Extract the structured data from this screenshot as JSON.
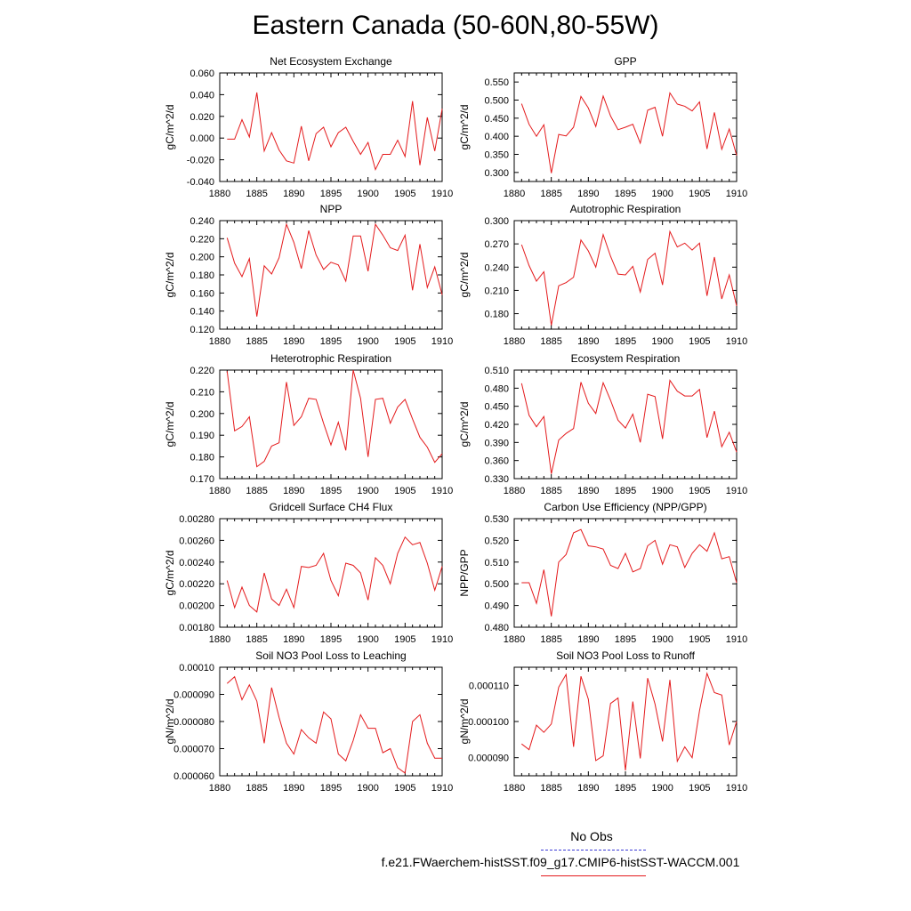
{
  "title": "Eastern Canada (50-60N,80-55W)",
  "legend": {
    "obs_label": "No Obs",
    "model_label": "f.e21.FWaerchem-histSST.f09_g17.CMIP6-histSST-WACCM.001",
    "obs_color": "#3b3bd6",
    "model_color": "#e41a1c"
  },
  "chart_data": [
    {
      "type": "line",
      "title": "Net Ecosystem Exchange",
      "ylabel": "gC/m^2/d",
      "xlim": [
        1880,
        1910
      ],
      "ylim": [
        -0.04,
        0.06
      ],
      "xticks": [
        1880,
        1885,
        1890,
        1895,
        1900,
        1905,
        1910
      ],
      "yticks": [
        -0.04,
        -0.02,
        0,
        0.02,
        0.04,
        0.06
      ],
      "yticklabels": [
        "-0.040",
        "-0.020",
        "0.000",
        "0.020",
        "0.040",
        "0.060"
      ],
      "x": [
        1881,
        1882,
        1883,
        1884,
        1885,
        1886,
        1887,
        1888,
        1889,
        1890,
        1891,
        1892,
        1893,
        1894,
        1895,
        1896,
        1897,
        1898,
        1899,
        1900,
        1901,
        1902,
        1903,
        1904,
        1905,
        1906,
        1907,
        1908,
        1909,
        1910
      ],
      "series": [
        {
          "values": [
            -0.001,
            -0.001,
            0.017,
            0.001,
            0.042,
            -0.012,
            0.005,
            -0.011,
            -0.021,
            -0.023,
            0.011,
            -0.021,
            0.004,
            0.01,
            -0.008,
            0.005,
            0.01,
            -0.003,
            -0.015,
            -0.004,
            -0.029,
            -0.015,
            -0.015,
            -0.002,
            -0.017,
            0.034,
            -0.025,
            0.019,
            -0.012,
            0.027
          ],
          "color": "#e41a1c"
        }
      ]
    },
    {
      "type": "line",
      "title": "GPP",
      "ylabel": "gC/m^2/d",
      "xlim": [
        1880,
        1910
      ],
      "ylim": [
        0.275,
        0.575
      ],
      "xticks": [
        1880,
        1885,
        1890,
        1895,
        1900,
        1905,
        1910
      ],
      "yticks": [
        0.3,
        0.35,
        0.4,
        0.45,
        0.5,
        0.55
      ],
      "yticklabels": [
        "0.300",
        "0.350",
        "0.400",
        "0.450",
        "0.500",
        "0.550"
      ],
      "x": [
        1881,
        1882,
        1883,
        1884,
        1885,
        1886,
        1887,
        1888,
        1889,
        1890,
        1891,
        1892,
        1893,
        1894,
        1895,
        1896,
        1897,
        1898,
        1899,
        1900,
        1901,
        1902,
        1903,
        1904,
        1905,
        1906,
        1907,
        1908,
        1909,
        1910
      ],
      "series": [
        {
          "values": [
            0.49,
            0.433,
            0.4,
            0.432,
            0.298,
            0.405,
            0.401,
            0.425,
            0.51,
            0.478,
            0.427,
            0.511,
            0.456,
            0.418,
            0.425,
            0.433,
            0.381,
            0.472,
            0.48,
            0.4,
            0.52,
            0.489,
            0.483,
            0.47,
            0.495,
            0.365,
            0.466,
            0.364,
            0.42,
            0.347
          ],
          "color": "#e41a1c"
        }
      ]
    },
    {
      "type": "line",
      "title": "NPP",
      "ylabel": "gC/m^2/d",
      "xlim": [
        1880,
        1910
      ],
      "ylim": [
        0.12,
        0.24
      ],
      "xticks": [
        1880,
        1885,
        1890,
        1895,
        1900,
        1905,
        1910
      ],
      "yticks": [
        0.12,
        0.14,
        0.16,
        0.18,
        0.2,
        0.22,
        0.24
      ],
      "yticklabels": [
        "0.120",
        "0.140",
        "0.160",
        "0.180",
        "0.200",
        "0.220",
        "0.240"
      ],
      "x": [
        1881,
        1882,
        1883,
        1884,
        1885,
        1886,
        1887,
        1888,
        1889,
        1890,
        1891,
        1892,
        1893,
        1894,
        1895,
        1896,
        1897,
        1898,
        1899,
        1900,
        1901,
        1902,
        1903,
        1904,
        1905,
        1906,
        1907,
        1908,
        1909,
        1910
      ],
      "series": [
        {
          "values": [
            0.221,
            0.193,
            0.178,
            0.198,
            0.134,
            0.19,
            0.181,
            0.199,
            0.236,
            0.216,
            0.187,
            0.229,
            0.202,
            0.186,
            0.194,
            0.191,
            0.173,
            0.223,
            0.223,
            0.184,
            0.236,
            0.224,
            0.21,
            0.207,
            0.224,
            0.163,
            0.214,
            0.166,
            0.189,
            0.158
          ],
          "color": "#e41a1c"
        }
      ]
    },
    {
      "type": "line",
      "title": "Autotrophic Respiration",
      "ylabel": "gC/m^2/d",
      "xlim": [
        1880,
        1910
      ],
      "ylim": [
        0.16,
        0.3
      ],
      "xticks": [
        1880,
        1885,
        1890,
        1895,
        1900,
        1905,
        1910
      ],
      "yticks": [
        0.18,
        0.21,
        0.24,
        0.27,
        0.3
      ],
      "yticklabels": [
        "0.180",
        "0.210",
        "0.240",
        "0.270",
        "0.300"
      ],
      "x": [
        1881,
        1882,
        1883,
        1884,
        1885,
        1886,
        1887,
        1888,
        1889,
        1890,
        1891,
        1892,
        1893,
        1894,
        1895,
        1896,
        1897,
        1898,
        1899,
        1900,
        1901,
        1902,
        1903,
        1904,
        1905,
        1906,
        1907,
        1908,
        1909,
        1910
      ],
      "series": [
        {
          "values": [
            0.269,
            0.242,
            0.222,
            0.234,
            0.165,
            0.216,
            0.22,
            0.227,
            0.275,
            0.261,
            0.24,
            0.282,
            0.254,
            0.231,
            0.23,
            0.241,
            0.208,
            0.25,
            0.258,
            0.217,
            0.286,
            0.266,
            0.271,
            0.262,
            0.271,
            0.203,
            0.253,
            0.199,
            0.23,
            0.19
          ],
          "color": "#e41a1c"
        }
      ]
    },
    {
      "type": "line",
      "title": "Heterotrophic Respiration",
      "ylabel": "gC/m^2/d",
      "xlim": [
        1880,
        1910
      ],
      "ylim": [
        0.17,
        0.22
      ],
      "xticks": [
        1880,
        1885,
        1890,
        1895,
        1900,
        1905,
        1910
      ],
      "yticks": [
        0.17,
        0.18,
        0.19,
        0.2,
        0.21,
        0.22
      ],
      "yticklabels": [
        "0.170",
        "0.180",
        "0.190",
        "0.200",
        "0.210",
        "0.220"
      ],
      "x": [
        1881,
        1882,
        1883,
        1884,
        1885,
        1886,
        1887,
        1888,
        1889,
        1890,
        1891,
        1892,
        1893,
        1894,
        1895,
        1896,
        1897,
        1898,
        1899,
        1900,
        1901,
        1902,
        1903,
        1904,
        1905,
        1906,
        1907,
        1908,
        1909,
        1910
      ],
      "series": [
        {
          "values": [
            0.2195,
            0.192,
            0.194,
            0.1985,
            0.1755,
            0.178,
            0.185,
            0.1865,
            0.2145,
            0.1945,
            0.1985,
            0.207,
            0.2065,
            0.1955,
            0.1855,
            0.196,
            0.183,
            0.22,
            0.207,
            0.18,
            0.2065,
            0.207,
            0.1955,
            0.203,
            0.2065,
            0.1975,
            0.189,
            0.1845,
            0.1775,
            0.1815
          ],
          "color": "#e41a1c"
        }
      ]
    },
    {
      "type": "line",
      "title": "Ecosystem Respiration",
      "ylabel": "gC/m^2/d",
      "xlim": [
        1880,
        1910
      ],
      "ylim": [
        0.33,
        0.51
      ],
      "xticks": [
        1880,
        1885,
        1890,
        1895,
        1900,
        1905,
        1910
      ],
      "yticks": [
        0.33,
        0.36,
        0.39,
        0.42,
        0.45,
        0.48,
        0.51
      ],
      "yticklabels": [
        "0.330",
        "0.360",
        "0.390",
        "0.420",
        "0.450",
        "0.480",
        "0.510"
      ],
      "x": [
        1881,
        1882,
        1883,
        1884,
        1885,
        1886,
        1887,
        1888,
        1889,
        1890,
        1891,
        1892,
        1893,
        1894,
        1895,
        1896,
        1897,
        1898,
        1899,
        1900,
        1901,
        1902,
        1903,
        1904,
        1905,
        1906,
        1907,
        1908,
        1909,
        1910
      ],
      "series": [
        {
          "values": [
            0.488,
            0.435,
            0.416,
            0.433,
            0.338,
            0.394,
            0.405,
            0.413,
            0.49,
            0.455,
            0.438,
            0.489,
            0.46,
            0.427,
            0.414,
            0.437,
            0.39,
            0.47,
            0.466,
            0.396,
            0.493,
            0.475,
            0.467,
            0.467,
            0.478,
            0.398,
            0.442,
            0.383,
            0.407,
            0.374
          ],
          "color": "#e41a1c"
        }
      ]
    },
    {
      "type": "line",
      "title": "Gridcell Surface CH4 Flux",
      "ylabel": "gC/m^2/d",
      "xlim": [
        1880,
        1910
      ],
      "ylim": [
        0.0018,
        0.0028
      ],
      "xticks": [
        1880,
        1885,
        1890,
        1895,
        1900,
        1905,
        1910
      ],
      "yticks": [
        0.0018,
        0.002,
        0.0022,
        0.0024,
        0.0026,
        0.0028
      ],
      "yticklabels": [
        "0.00180",
        "0.00200",
        "0.00220",
        "0.00240",
        "0.00260",
        "0.00280"
      ],
      "x": [
        1881,
        1882,
        1883,
        1884,
        1885,
        1886,
        1887,
        1888,
        1889,
        1890,
        1891,
        1892,
        1893,
        1894,
        1895,
        1896,
        1897,
        1898,
        1899,
        1900,
        1901,
        1902,
        1903,
        1904,
        1905,
        1906,
        1907,
        1908,
        1909,
        1910
      ],
      "series": [
        {
          "values": [
            0.00223,
            0.00198,
            0.00217,
            0.002,
            0.00194,
            0.0023,
            0.00206,
            0.002,
            0.00215,
            0.00198,
            0.00236,
            0.00235,
            0.00237,
            0.00248,
            0.00223,
            0.00209,
            0.00239,
            0.00237,
            0.0023,
            0.00205,
            0.00244,
            0.00237,
            0.0022,
            0.00248,
            0.00263,
            0.00256,
            0.00258,
            0.00239,
            0.00214,
            0.00236
          ],
          "color": "#e41a1c"
        }
      ]
    },
    {
      "type": "line",
      "title": "Carbon Use Efficiency (NPP/GPP)",
      "ylabel": "NPP/GPP",
      "xlim": [
        1880,
        1910
      ],
      "ylim": [
        0.48,
        0.53
      ],
      "xticks": [
        1880,
        1885,
        1890,
        1895,
        1900,
        1905,
        1910
      ],
      "yticks": [
        0.48,
        0.49,
        0.5,
        0.51,
        0.52,
        0.53
      ],
      "yticklabels": [
        "0.480",
        "0.490",
        "0.500",
        "0.510",
        "0.520",
        "0.530"
      ],
      "x": [
        1881,
        1882,
        1883,
        1884,
        1885,
        1886,
        1887,
        1888,
        1889,
        1890,
        1891,
        1892,
        1893,
        1894,
        1895,
        1896,
        1897,
        1898,
        1899,
        1900,
        1901,
        1902,
        1903,
        1904,
        1905,
        1906,
        1907,
        1908,
        1909,
        1910
      ],
      "series": [
        {
          "values": [
            0.5005,
            0.5005,
            0.491,
            0.5065,
            0.485,
            0.51,
            0.5135,
            0.5235,
            0.525,
            0.5175,
            0.517,
            0.516,
            0.5085,
            0.507,
            0.514,
            0.5055,
            0.507,
            0.5175,
            0.52,
            0.509,
            0.518,
            0.517,
            0.5075,
            0.514,
            0.518,
            0.515,
            0.5235,
            0.5115,
            0.5125,
            0.5005
          ],
          "color": "#e41a1c"
        }
      ]
    },
    {
      "type": "line",
      "title": "Soil NO3 Pool Loss to Leaching",
      "ylabel": "gN/m^2/d",
      "xlim": [
        1880,
        1910
      ],
      "ylim": [
        6e-05,
        0.0001
      ],
      "xticks": [
        1880,
        1885,
        1890,
        1895,
        1900,
        1905,
        1910
      ],
      "yticks": [
        6e-05,
        7e-05,
        8e-05,
        9e-05,
        0.0001
      ],
      "yticklabels": [
        "0.000060",
        "0.000070",
        "0.000080",
        "0.000090",
        "0.00010"
      ],
      "x": [
        1881,
        1882,
        1883,
        1884,
        1885,
        1886,
        1887,
        1888,
        1889,
        1890,
        1891,
        1892,
        1893,
        1894,
        1895,
        1896,
        1897,
        1898,
        1899,
        1900,
        1901,
        1902,
        1903,
        1904,
        1905,
        1906,
        1907,
        1908,
        1909,
        1910
      ],
      "series": [
        {
          "values": [
            9.4e-05,
            9.65e-05,
            8.8e-05,
            9.35e-05,
            8.75e-05,
            7.2e-05,
            9.25e-05,
            8.15e-05,
            7.2e-05,
            6.8e-05,
            7.7e-05,
            7.4e-05,
            7.2e-05,
            8.35e-05,
            8.1e-05,
            6.8e-05,
            6.55e-05,
            7.3e-05,
            8.25e-05,
            7.75e-05,
            7.75e-05,
            6.85e-05,
            7e-05,
            6.3e-05,
            6.1e-05,
            8e-05,
            8.25e-05,
            7.2e-05,
            6.65e-05,
            6.65e-05
          ],
          "color": "#e41a1c"
        }
      ]
    },
    {
      "type": "line",
      "title": "Soil NO3 Pool Loss to Runoff",
      "ylabel": "gN/m^2/d",
      "xlim": [
        1880,
        1910
      ],
      "ylim": [
        8.5e-05,
        0.000115
      ],
      "xticks": [
        1880,
        1885,
        1890,
        1895,
        1900,
        1905,
        1910
      ],
      "yticks": [
        9e-05,
        0.0001,
        0.00011
      ],
      "yticklabels": [
        "0.000090",
        "0.000100",
        "0.000110"
      ],
      "x": [
        1881,
        1882,
        1883,
        1884,
        1885,
        1886,
        1887,
        1888,
        1889,
        1890,
        1891,
        1892,
        1893,
        1894,
        1895,
        1896,
        1897,
        1898,
        1899,
        1900,
        1901,
        1902,
        1903,
        1904,
        1905,
        1906,
        1907,
        1908,
        1909,
        1910
      ],
      "series": [
        {
          "values": [
            9.38e-05,
            9.22e-05,
            9.9e-05,
            9.7e-05,
            9.93e-05,
            0.0001095,
            0.000113,
            9.3e-05,
            0.0001125,
            0.0001062,
            8.92e-05,
            9.05e-05,
            0.000105,
            0.0001065,
            8.65e-05,
            0.0001055,
            8.98e-05,
            0.000112,
            0.0001048,
            9.45e-05,
            0.0001115,
            8.9e-05,
            9.3e-05,
            9e-05,
            0.000103,
            0.0001133,
            0.000108,
            0.0001073,
            9.35e-05,
            0.0001
          ],
          "color": "#e41a1c"
        }
      ]
    }
  ]
}
